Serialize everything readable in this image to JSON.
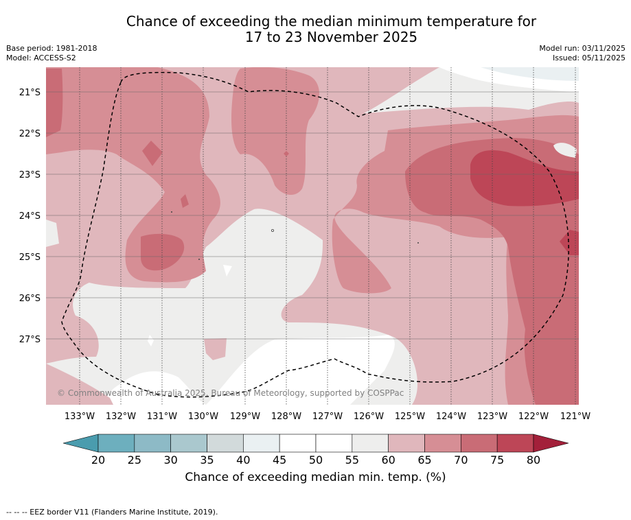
{
  "title": {
    "line1": "Chance of exceeding the median minimum temperature for",
    "line2": "17 to 23 November 2025"
  },
  "meta": {
    "base_period": "Base period: 1981-2018",
    "model": "Model: ACCESS-S2",
    "model_run": "Model run: 03/11/2025",
    "issued": "Issued: 05/11/2025"
  },
  "map": {
    "lat_labels": [
      "21°S",
      "22°S",
      "23°S",
      "24°S",
      "25°S",
      "26°S",
      "27°S"
    ],
    "lon_labels": [
      "133°W",
      "132°W",
      "131°W",
      "130°W",
      "129°W",
      "128°W",
      "127°W",
      "126°W",
      "125°W",
      "124°W",
      "123°W",
      "122°W",
      "121°W"
    ],
    "copyright": "© Commonwealth of Australia 2025, Bureau of Meteorology, supported by COSPPac"
  },
  "colorbar": {
    "ticks": [
      "20",
      "25",
      "30",
      "35",
      "40",
      "45",
      "50",
      "55",
      "60",
      "65",
      "70",
      "75",
      "80"
    ],
    "colors": [
      "#6dafbe",
      "#8dbac6",
      "#aac8ce",
      "#d2dadb",
      "#eaf0f2",
      "#ffffff",
      "#ffffff",
      "#eeeeed",
      "#e0b7bc",
      "#d68e95",
      "#c96c76",
      "#bd4657"
    ],
    "under_color": "#4a9cae",
    "over_color": "#a3203a",
    "label": "Chance of exceeding median min. temp. (%)"
  },
  "footer": "--  --  -- EEZ border V11 (Flanders Marine Institute, 2019)."
}
